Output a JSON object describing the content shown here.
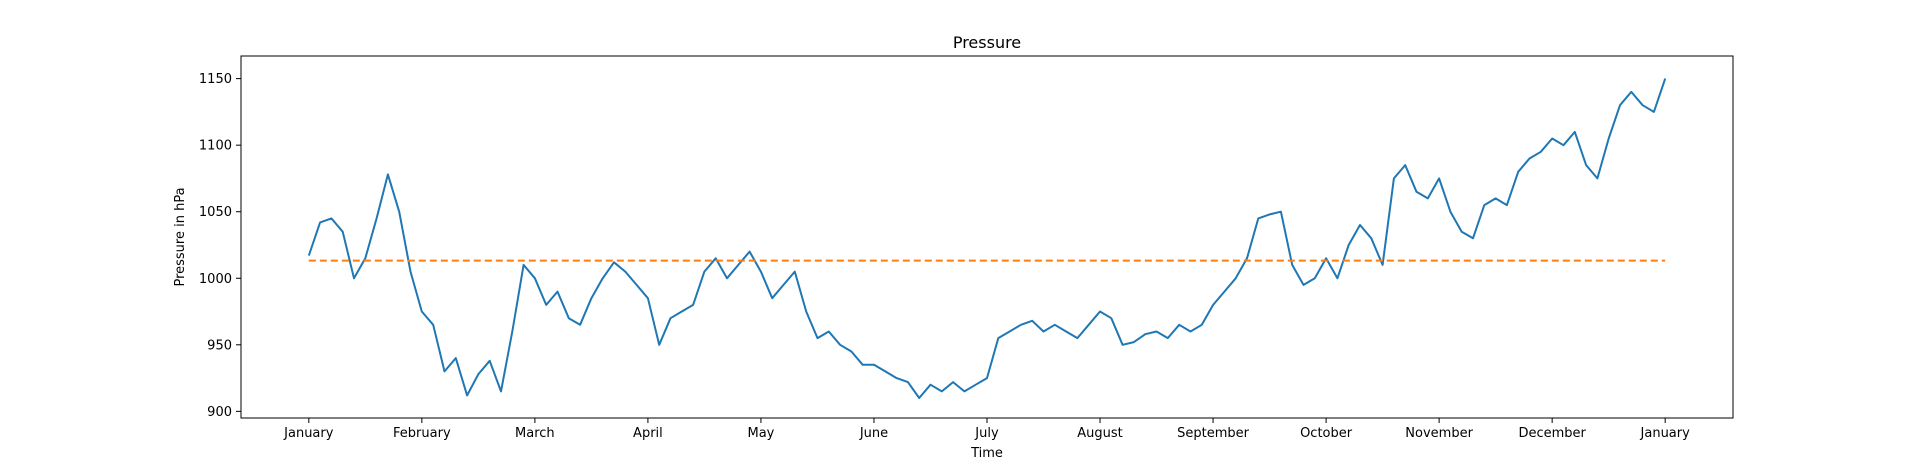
{
  "chart_data": {
    "type": "line",
    "title": "Pressure",
    "xlabel": "Time",
    "ylabel": "Pressure in hPa",
    "x_tick_labels": [
      "January",
      "February",
      "March",
      "April",
      "May",
      "June",
      "July",
      "August",
      "September",
      "October",
      "November",
      "December",
      "January"
    ],
    "y_ticks": [
      900,
      950,
      1000,
      1050,
      1100,
      1150
    ],
    "ylim": [
      895,
      1167
    ],
    "xlim": [
      -0.6,
      12.6
    ],
    "grid": false,
    "reference_value": 1013.25,
    "series": [
      {
        "color": "#1f77b4",
        "style": "solid",
        "x": [
          0,
          0.1,
          0.2,
          0.3,
          0.4,
          0.5,
          0.6,
          0.7,
          0.8,
          0.9,
          1.0,
          1.1,
          1.2,
          1.3,
          1.4,
          1.5,
          1.6,
          1.7,
          1.8,
          1.9,
          2.0,
          2.1,
          2.2,
          2.3,
          2.4,
          2.5,
          2.6,
          2.7,
          2.8,
          2.9,
          3.0,
          3.1,
          3.2,
          3.3,
          3.4,
          3.5,
          3.6,
          3.7,
          3.8,
          3.9,
          4.0,
          4.1,
          4.2,
          4.3,
          4.4,
          4.5,
          4.6,
          4.7,
          4.8,
          4.9,
          5.0,
          5.1,
          5.2,
          5.3,
          5.4,
          5.5,
          5.6,
          5.7,
          5.8,
          5.9,
          6.0,
          6.1,
          6.2,
          6.3,
          6.4,
          6.5,
          6.6,
          6.7,
          6.8,
          6.9,
          7.0,
          7.1,
          7.2,
          7.3,
          7.4,
          7.5,
          7.6,
          7.7,
          7.8,
          7.9,
          8.0,
          8.1,
          8.2,
          8.3,
          8.4,
          8.5,
          8.6,
          8.7,
          8.8,
          8.9,
          9.0,
          9.1,
          9.2,
          9.3,
          9.4,
          9.5,
          9.6,
          9.7,
          9.8,
          9.9,
          10.0,
          10.1,
          10.2,
          10.3,
          10.4,
          10.5,
          10.6,
          10.7,
          10.8,
          10.9,
          11.0,
          11.1,
          11.2,
          11.3,
          11.4,
          11.5,
          11.6,
          11.7,
          11.8,
          11.9,
          12.0
        ],
        "y": [
          1017,
          1042,
          1045,
          1035,
          1000,
          1015,
          1045,
          1078,
          1050,
          1005,
          975,
          965,
          930,
          940,
          912,
          928,
          938,
          915,
          960,
          1010,
          1000,
          980,
          990,
          970,
          965,
          985,
          1000,
          1012,
          1005,
          995,
          985,
          950,
          970,
          975,
          980,
          1005,
          1015,
          1000,
          1010,
          1020,
          1005,
          985,
          995,
          1005,
          975,
          955,
          960,
          950,
          945,
          935,
          935,
          930,
          925,
          922,
          910,
          920,
          915,
          922,
          915,
          920,
          925,
          955,
          960,
          965,
          968,
          960,
          965,
          960,
          955,
          965,
          975,
          970,
          950,
          952,
          958,
          960,
          955,
          965,
          960,
          965,
          980,
          990,
          1000,
          1015,
          1045,
          1048,
          1050,
          1010,
          995,
          1000,
          1015,
          1000,
          1025,
          1040,
          1030,
          1010,
          1075,
          1085,
          1065,
          1060,
          1075,
          1050,
          1035,
          1030,
          1055,
          1060,
          1055,
          1080,
          1090,
          1095,
          1105,
          1100,
          1110,
          1085,
          1075,
          1105,
          1130,
          1140,
          1130,
          1125,
          1150
        ]
      },
      {
        "color": "#ff7f0e",
        "style": "dashed",
        "x": [
          0,
          12.0
        ],
        "y": [
          1013.25,
          1013.25
        ]
      }
    ]
  }
}
